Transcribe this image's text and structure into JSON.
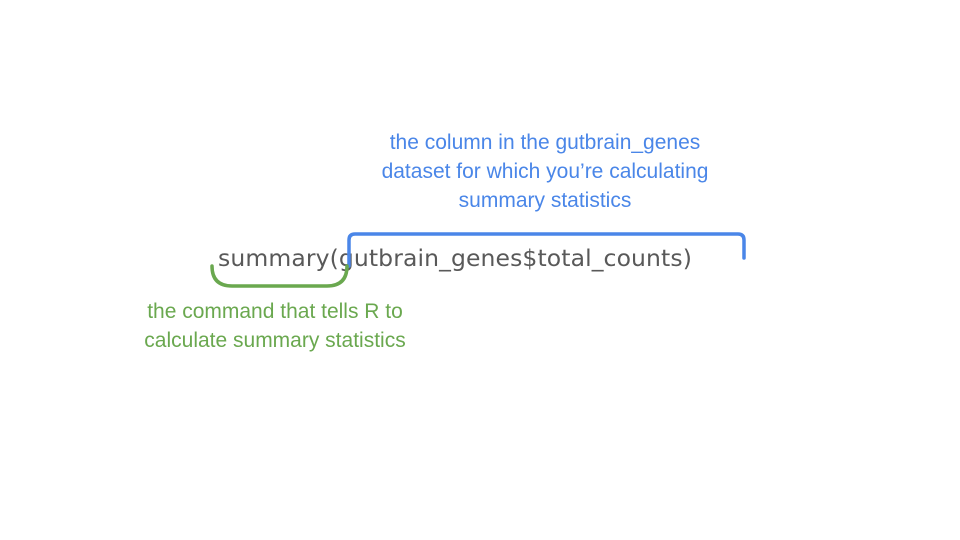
{
  "annotations": {
    "column": {
      "lines": [
        "the column in the gutbrain_genes",
        "dataset for which you’re calculating",
        "summary statistics"
      ],
      "color": "#4a86e8"
    },
    "command": {
      "lines": [
        "the command that tells R to",
        "calculate summary statistics"
      ],
      "color": "#6aa84f"
    }
  },
  "code": {
    "function": "summary",
    "argument": "(gutbrain_genes$total_counts)",
    "color": "#595959"
  }
}
